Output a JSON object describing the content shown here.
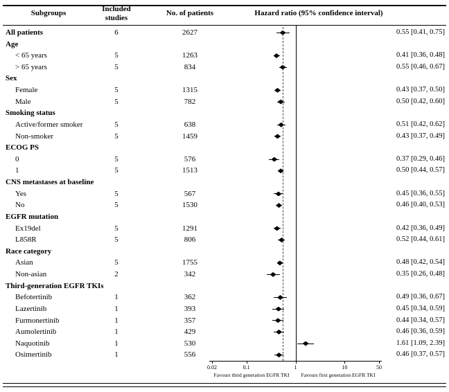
{
  "header": {
    "subgroups": "Subgroups",
    "included_studies": "Included studies",
    "no_of_patients": "No. of patients",
    "hazard_ratio": "Hazard ratio (95% confidence interval)"
  },
  "axis": {
    "scale": "log",
    "range": [
      0.02,
      50
    ],
    "ticks": [
      0.02,
      0.1,
      1,
      10,
      50
    ],
    "tick_labels": [
      "0.02",
      "0.1",
      "1",
      "10",
      "50"
    ],
    "reference_line": 1,
    "dashed_line": 0.55,
    "left_label": "Favours third generation EGFR TKI",
    "right_label": "Favours first generation EGFR TKI"
  },
  "chart_data": {
    "type": "scatter",
    "variant": "forest_plot",
    "xlabel": "Hazard ratio (95% confidence interval)",
    "xlim": [
      0.02,
      50
    ],
    "rows": [
      {
        "label": "All patients",
        "bold": true,
        "indent": 0,
        "studies": "6",
        "patients": "2627",
        "hr": 0.55,
        "lo": 0.41,
        "hi": 0.75,
        "hr_text": "0.55 [0.41, 0.75]"
      },
      {
        "label": "Age",
        "bold": true,
        "indent": 0
      },
      {
        "label": "< 65 years",
        "indent": 1,
        "studies": "5",
        "patients": "1263",
        "hr": 0.41,
        "lo": 0.36,
        "hi": 0.48,
        "hr_text": "0.41 [0.36, 0.48]"
      },
      {
        "label": "> 65 years",
        "indent": 1,
        "studies": "5",
        "patients": "834",
        "hr": 0.55,
        "lo": 0.46,
        "hi": 0.67,
        "hr_text": "0.55 [0.46, 0.67]"
      },
      {
        "label": "Sex",
        "bold": true,
        "indent": 0
      },
      {
        "label": "Female",
        "indent": 1,
        "studies": "5",
        "patients": "1315",
        "hr": 0.43,
        "lo": 0.37,
        "hi": 0.5,
        "hr_text": "0.43 [0.37, 0.50]"
      },
      {
        "label": "Male",
        "indent": 1,
        "studies": "5",
        "patients": "782",
        "hr": 0.5,
        "lo": 0.42,
        "hi": 0.6,
        "hr_text": "0.50 [0.42, 0.60]"
      },
      {
        "label": "Smoking status",
        "bold": true,
        "indent": 0
      },
      {
        "label": "Active/former smoker",
        "indent": 1,
        "studies": "5",
        "patients": "638",
        "hr": 0.51,
        "lo": 0.42,
        "hi": 0.62,
        "hr_text": "0.51 [0.42, 0.62]"
      },
      {
        "label": "Non-smoker",
        "indent": 1,
        "studies": "5",
        "patients": "1459",
        "hr": 0.43,
        "lo": 0.37,
        "hi": 0.49,
        "hr_text": "0.43 [0.37, 0.49]"
      },
      {
        "label": "ECOG PS",
        "bold": true,
        "indent": 0
      },
      {
        "label": "0",
        "indent": 1,
        "studies": "5",
        "patients": "576",
        "hr": 0.37,
        "lo": 0.29,
        "hi": 0.46,
        "hr_text": "0.37 [0.29, 0.46]"
      },
      {
        "label": "1",
        "indent": 1,
        "studies": "5",
        "patients": "1513",
        "hr": 0.5,
        "lo": 0.44,
        "hi": 0.57,
        "hr_text": "0.50 [0.44, 0.57]"
      },
      {
        "label": "CNS metastases at baseline",
        "bold": true,
        "indent": 0
      },
      {
        "label": "Yes",
        "indent": 1,
        "studies": "5",
        "patients": "567",
        "hr": 0.45,
        "lo": 0.36,
        "hi": 0.55,
        "hr_text": "0.45 [0.36, 0.55]"
      },
      {
        "label": "No",
        "indent": 1,
        "studies": "5",
        "patients": "1530",
        "hr": 0.46,
        "lo": 0.4,
        "hi": 0.53,
        "hr_text": "0.46 [0.40, 0.53]"
      },
      {
        "label": "EGFR mutation",
        "bold": true,
        "indent": 0
      },
      {
        "label": "Ex19del",
        "indent": 1,
        "studies": "5",
        "patients": "1291",
        "hr": 0.42,
        "lo": 0.36,
        "hi": 0.49,
        "hr_text": "0.42 [0.36, 0.49]"
      },
      {
        "label": "L858R",
        "indent": 1,
        "studies": "5",
        "patients": "806",
        "hr": 0.52,
        "lo": 0.44,
        "hi": 0.61,
        "hr_text": "0.52 [0.44, 0.61]"
      },
      {
        "label": "Race category",
        "bold": true,
        "indent": 0
      },
      {
        "label": "Asian",
        "indent": 1,
        "studies": "5",
        "patients": "1755",
        "hr": 0.48,
        "lo": 0.42,
        "hi": 0.54,
        "hr_text": "0.48 [0.42, 0.54]"
      },
      {
        "label": "Non-asian",
        "indent": 1,
        "studies": "2",
        "patients": "342",
        "hr": 0.35,
        "lo": 0.26,
        "hi": 0.48,
        "hr_text": "0.35 [0.26, 0.48]"
      },
      {
        "label": "Third-generation EGFR TKIs",
        "bold": true,
        "indent": 0
      },
      {
        "label": "Befotertinib",
        "indent": 1,
        "studies": "1",
        "patients": "362",
        "hr": 0.49,
        "lo": 0.36,
        "hi": 0.67,
        "hr_text": "0.49 [0.36, 0.67]"
      },
      {
        "label": "Lazertinib",
        "indent": 1,
        "studies": "1",
        "patients": "393",
        "hr": 0.45,
        "lo": 0.34,
        "hi": 0.59,
        "hr_text": "0.45 [0.34, 0.59]"
      },
      {
        "label": "Furmonertinib",
        "indent": 1,
        "studies": "1",
        "patients": "357",
        "hr": 0.44,
        "lo": 0.34,
        "hi": 0.57,
        "hr_text": "0.44 [0.34, 0.57]"
      },
      {
        "label": "Aumolertinib",
        "indent": 1,
        "studies": "1",
        "patients": "429",
        "hr": 0.46,
        "lo": 0.36,
        "hi": 0.59,
        "hr_text": "0.46 [0.36, 0.59]"
      },
      {
        "label": "Naquotinib",
        "indent": 1,
        "studies": "1",
        "patients": "530",
        "hr": 1.61,
        "lo": 1.09,
        "hi": 2.39,
        "hr_text": "1.61 [1.09, 2.39]"
      },
      {
        "label": "Osimertinib",
        "indent": 1,
        "studies": "1",
        "patients": "556",
        "hr": 0.46,
        "lo": 0.37,
        "hi": 0.57,
        "hr_text": "0.46 [0.37, 0.57]"
      }
    ]
  }
}
